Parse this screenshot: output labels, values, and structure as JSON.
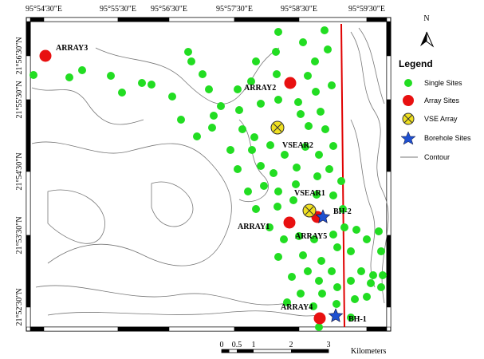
{
  "map": {
    "longitude_labels": [
      "95°54'30\"E",
      "95°55'30\"E",
      "95°56'30\"E",
      "95°57'30\"E",
      "95°58'30\"E",
      "95°59'30\"E"
    ],
    "latitude_labels": [
      "21°56'30\"N",
      "21°55'30\"N",
      "21°54'30\"N",
      "21°53'30\"N",
      "21°52'30\"N"
    ],
    "site_labels": [
      "ARRAY3",
      "ARRAY2",
      "VSEAR2",
      "VSEAR1",
      "BH-2",
      "ARRAY1",
      "ARRAY5",
      "ARRAY4",
      "BH-1"
    ],
    "north": "N",
    "legend": {
      "title": "Legend",
      "items": [
        "Single Sites",
        "Array Sites",
        "VSE Array",
        "Borehole Sites",
        "Contour"
      ]
    },
    "scale_bar": {
      "labels": [
        "0",
        "0.5",
        "1",
        "2",
        "3"
      ],
      "unit": "Kilometers"
    }
  }
}
